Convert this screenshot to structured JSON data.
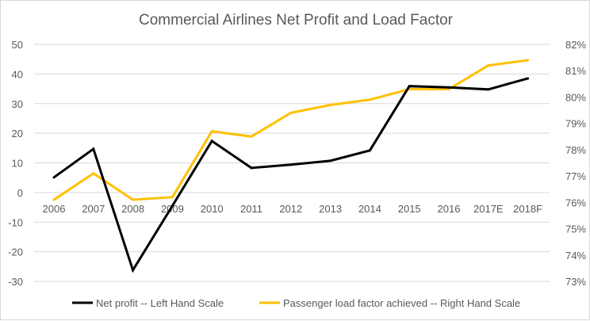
{
  "chart_data": {
    "type": "line",
    "title": "Commercial Airlines Net Profit and Load Factor",
    "categories": [
      "2006",
      "2007",
      "2008",
      "2009",
      "2010",
      "2011",
      "2012",
      "2013",
      "2014",
      "2015",
      "2016",
      "2017E",
      "2018F"
    ],
    "left_axis": {
      "range": [
        -30,
        50
      ],
      "ticks": [
        "50",
        "40",
        "30",
        "20",
        "10",
        "0",
        "-10",
        "-20",
        "-30"
      ]
    },
    "right_axis": {
      "range": [
        73,
        82
      ],
      "ticks": [
        "82%",
        "81%",
        "80%",
        "79%",
        "78%",
        "77%",
        "76%",
        "75%",
        "74%",
        "73%"
      ]
    },
    "grid": true,
    "legend_position": "bottom",
    "series": [
      {
        "name": "Net profit -- Left Hand Scale",
        "axis": "left",
        "color": "#000000",
        "values": [
          5.1,
          14.7,
          -26.2,
          -4.5,
          17.4,
          8.3,
          9.4,
          10.7,
          14.2,
          35.9,
          35.5,
          34.8,
          38.5
        ]
      },
      {
        "name": "Passenger load factor achieved -- Right Hand Scale",
        "axis": "right",
        "color": "#FFC000",
        "values": [
          76.1,
          77.1,
          76.1,
          76.2,
          78.7,
          78.5,
          79.4,
          79.7,
          79.9,
          80.3,
          80.3,
          81.2,
          81.4
        ]
      }
    ]
  }
}
